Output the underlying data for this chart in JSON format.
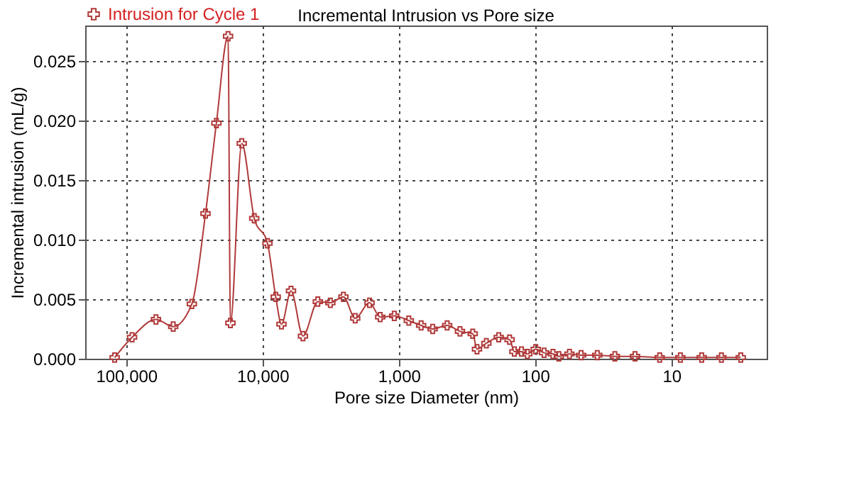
{
  "chart_data": {
    "type": "line",
    "title": "Incremental Intrusion vs Pore size",
    "xlabel": "Pore size Diameter (nm)",
    "ylabel": "Incremental intrusion (mL/g)",
    "x": [
      121600,
      90600,
      60500,
      45200,
      33000,
      26200,
      21800,
      17900,
      17200,
      14200,
      11500,
      9200,
      8000,
      7260,
      6180,
      5050,
      3930,
      3180,
      2550,
      2090,
      1640,
      1370,
      1080,
      845,
      686,
      565,
      442,
      356,
      287,
      267,
      228,
      185,
      154,
      142,
      126,
      114,
      99,
      86,
      74,
      67,
      56,
      46,
      35,
      26,
      18.5,
      12.2,
      8.6,
      6.0,
      4.3,
      3.1
    ],
    "series": [
      {
        "name": "Intrusion for Cycle 1",
        "color": "#b03a3a",
        "values": [
          0.0001,
          0.0018,
          0.0033,
          0.0027,
          0.0046,
          0.0122,
          0.0198,
          0.0271,
          0.003,
          0.0181,
          0.0118,
          0.0097,
          0.0052,
          0.0029,
          0.0057,
          0.0019,
          0.0048,
          0.0047,
          0.0052,
          0.0034,
          0.0047,
          0.0035,
          0.0036,
          0.0032,
          0.0028,
          0.0025,
          0.0028,
          0.0023,
          0.0021,
          0.0008,
          0.0013,
          0.0018,
          0.0016,
          0.0006,
          0.0006,
          0.0004,
          0.0008,
          0.0005,
          0.0004,
          0.0002,
          0.0004,
          0.0003,
          0.0003,
          0.0002,
          0.0002,
          0.0001,
          0.0001,
          0.0001,
          0.0001,
          0.0001
        ]
      }
    ],
    "log": "x",
    "xlim": [
      200000,
      2
    ],
    "xticks": [
      {
        "value": 100000,
        "label": "100,000"
      },
      {
        "value": 10000,
        "label": "10,000"
      },
      {
        "value": 1000,
        "label": "1,000"
      },
      100,
      10
    ],
    "ylim": [
      0,
      0.028
    ],
    "yticks": [
      {
        "value": 0,
        "label": "0.000"
      },
      {
        "value": 0.005,
        "label": "0.005"
      },
      {
        "value": 0.01,
        "label": "0.010"
      },
      {
        "value": 0.015,
        "label": "0.015"
      },
      {
        "value": 0.02,
        "label": "0.020"
      },
      {
        "value": 0.025,
        "label": "0.025"
      }
    ],
    "grid": true,
    "legend": "top left",
    "marker": "cross",
    "line_style": "solid"
  }
}
